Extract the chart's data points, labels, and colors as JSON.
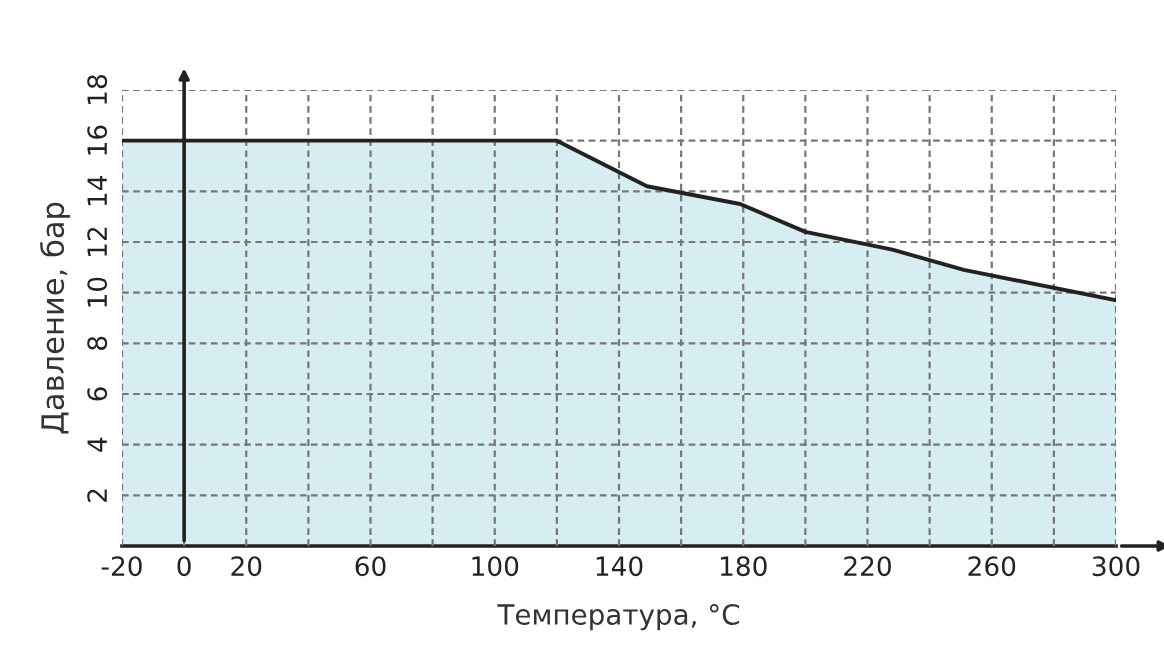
{
  "chart_data": {
    "type": "area",
    "xlabel": "Температура, °C",
    "ylabel": "Давление, бар",
    "x": [
      -20,
      120,
      149,
      179,
      200,
      228,
      251,
      300
    ],
    "series": [
      {
        "color": "#d6eef2",
        "values": [
          16,
          16,
          14.2,
          13.5,
          12.4,
          11.7,
          10.9,
          9.7
        ]
      }
    ],
    "xlim": [
      -20,
      300
    ],
    "ylim": [
      0,
      18
    ],
    "xticks": [
      -20,
      0,
      20,
      {
        "value": 40,
        "label": null
      },
      60,
      {
        "value": 80,
        "label": null
      },
      100,
      {
        "value": 120,
        "label": null
      },
      140,
      {
        "value": 160,
        "label": null
      },
      180,
      {
        "value": 200,
        "label": null
      },
      220,
      {
        "value": 240,
        "label": null
      },
      260,
      {
        "value": 280,
        "label": null
      },
      300
    ],
    "yticks": [
      2,
      4,
      6,
      8,
      10,
      12,
      14,
      16,
      18
    ],
    "grid": true,
    "line_style": "solid"
  }
}
